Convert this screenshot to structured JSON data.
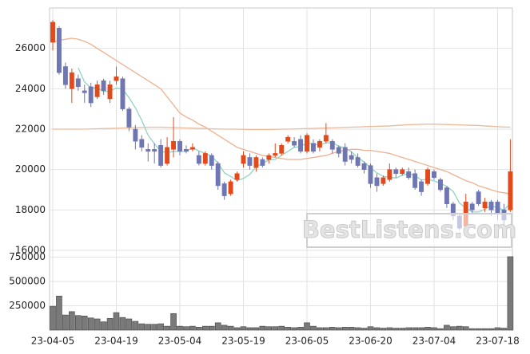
{
  "chart_data": {
    "type": "candlestick",
    "categories": [
      "23-04-05",
      null,
      null,
      null,
      null,
      null,
      null,
      null,
      null,
      null,
      "23-04-19",
      null,
      null,
      null,
      null,
      null,
      null,
      null,
      null,
      null,
      "23-05-04",
      null,
      null,
      null,
      null,
      null,
      null,
      null,
      null,
      null,
      "23-05-19",
      null,
      null,
      null,
      null,
      null,
      null,
      null,
      null,
      null,
      "23-06-05",
      null,
      null,
      null,
      null,
      null,
      null,
      null,
      null,
      null,
      "23-06-20",
      null,
      null,
      null,
      null,
      null,
      null,
      null,
      null,
      null,
      "23-07-04",
      null,
      null,
      null,
      null,
      null,
      null,
      null,
      null,
      null,
      "23-07-18",
      null,
      null
    ],
    "open": [
      26300,
      27000,
      25100,
      24000,
      24500,
      23900,
      24100,
      23600,
      24400,
      23500,
      24400,
      24500,
      23000,
      22000,
      21500,
      21000,
      21000,
      21200,
      20300,
      21000,
      21400,
      21000,
      21000,
      20700,
      20300,
      20700,
      20300,
      19300,
      18800,
      19500,
      20300,
      20600,
      20100,
      20500,
      20500,
      20700,
      20800,
      21400,
      21400,
      21500,
      20900,
      21300,
      21100,
      21400,
      21400,
      21100,
      21100,
      20700,
      20600,
      20300,
      20200,
      19600,
      19300,
      19500,
      20000,
      19800,
      19900,
      19800,
      19400,
      19300,
      19900,
      19500,
      19100,
      18300,
      17700,
      17200,
      18300,
      18900,
      18100,
      18400,
      18400,
      18000,
      18000
    ],
    "high": [
      27400,
      27100,
      25300,
      25000,
      24700,
      24200,
      24300,
      24400,
      24500,
      24400,
      25100,
      24600,
      23100,
      22200,
      21700,
      21300,
      21300,
      21500,
      21600,
      22600,
      21500,
      21200,
      21300,
      20900,
      20900,
      20800,
      20400,
      19400,
      19500,
      19900,
      20900,
      20800,
      20700,
      20600,
      20800,
      21300,
      21300,
      21700,
      21600,
      21700,
      21800,
      21500,
      21500,
      22300,
      21500,
      21200,
      21300,
      20900,
      20800,
      20400,
      20300,
      19800,
      19700,
      20300,
      20100,
      20100,
      20100,
      20000,
      19500,
      20100,
      20000,
      19600,
      19200,
      18400,
      17800,
      18800,
      18400,
      19000,
      18600,
      18500,
      18500,
      18300,
      21500
    ],
    "low": [
      25900,
      24700,
      24000,
      23300,
      23900,
      23300,
      23100,
      23500,
      23700,
      23300,
      24200,
      22900,
      21900,
      21000,
      20900,
      20400,
      20300,
      20100,
      20200,
      20600,
      20700,
      20800,
      20900,
      20200,
      20200,
      20000,
      19000,
      18500,
      18700,
      19400,
      20100,
      20000,
      19900,
      20100,
      20300,
      20600,
      20700,
      21300,
      21100,
      20800,
      20800,
      20800,
      20900,
      21300,
      20800,
      20600,
      20200,
      20300,
      20100,
      19800,
      19100,
      18900,
      19200,
      19400,
      19600,
      19700,
      19500,
      19000,
      18700,
      19200,
      19500,
      18900,
      18100,
      17500,
      17000,
      17100,
      17800,
      18200,
      17900,
      17700,
      17500,
      17300,
      17900
    ],
    "close": [
      27300,
      24800,
      24200,
      24800,
      24100,
      23800,
      23300,
      24200,
      23900,
      24200,
      24600,
      23000,
      22100,
      21400,
      21100,
      20900,
      20900,
      20200,
      21100,
      21400,
      20900,
      20900,
      21100,
      20300,
      20800,
      20200,
      19200,
      18700,
      19400,
      19800,
      20700,
      20200,
      20600,
      20200,
      20700,
      20800,
      21200,
      21600,
      21200,
      20900,
      21700,
      20900,
      21400,
      21700,
      21000,
      20800,
      20400,
      20500,
      20200,
      20000,
      19300,
      19200,
      19600,
      20000,
      19800,
      20000,
      19600,
      19100,
      18900,
      20000,
      19600,
      19000,
      18300,
      17700,
      17100,
      18400,
      18000,
      18300,
      18400,
      18000,
      17800,
      17500,
      19900
    ],
    "up_color": "#e24a1b",
    "down_color": "#6e76b4",
    "ylim": [
      16000,
      28000
    ],
    "yticks": [
      16000,
      18000,
      20000,
      22000,
      24000,
      26000
    ],
    "grid": true,
    "series": [
      {
        "color": "#8fd3c4",
        "values": [
          null,
          null,
          null,
          null,
          25040,
          24340,
          24040,
          24040,
          23860,
          23880,
          24040,
          23980,
          23560,
          23060,
          22440,
          21700,
          21280,
          20900,
          20840,
          20900,
          20900,
          20900,
          21080,
          20920,
          20800,
          20660,
          20320,
          19840,
          19660,
          19460,
          19560,
          19760,
          20140,
          20300,
          20480,
          20500,
          20700,
          20900,
          21100,
          21140,
          21320,
          21260,
          21220,
          21320,
          21340,
          21160,
          21060,
          20880,
          20580,
          20380,
          20080,
          19840,
          19660,
          19620,
          19580,
          19720,
          19800,
          19700,
          19480,
          19520,
          19440,
          19320,
          19160,
          18920,
          18340,
          18100,
          17900,
          17900,
          18040,
          18220,
          18100,
          18000,
          18320
        ]
      },
      {
        "color": "#eeb08f",
        "values": [
          26300,
          26400,
          26450,
          26500,
          26450,
          26350,
          26200,
          26000,
          25800,
          25600,
          25400,
          25200,
          25000,
          24800,
          24600,
          24400,
          24200,
          24000,
          23600,
          23200,
          22800,
          22600,
          22450,
          22250,
          22100,
          21900,
          21700,
          21500,
          21300,
          21100,
          21000,
          20900,
          20800,
          20700,
          20650,
          20600,
          20550,
          20500,
          20500,
          20500,
          20550,
          20600,
          20650,
          20700,
          20800,
          20900,
          20950,
          21000,
          21000,
          20950,
          20950,
          20900,
          20850,
          20800,
          20700,
          20600,
          20500,
          20400,
          20300,
          20200,
          20100,
          20000,
          19900,
          19750,
          19600,
          19450,
          19350,
          19200,
          19100,
          19000,
          18900,
          18850,
          18800
        ]
      },
      {
        "color": "#ebb99c",
        "values": [
          22000,
          22000,
          22000,
          22000,
          22000,
          22000,
          22010,
          22020,
          22030,
          22040,
          22050,
          22060,
          22070,
          22080,
          22090,
          22100,
          22100,
          22100,
          22090,
          22080,
          22070,
          22060,
          22050,
          22040,
          22030,
          22020,
          22010,
          22000,
          22000,
          22000,
          21990,
          21980,
          21980,
          21980,
          21980,
          21990,
          22000,
          22000,
          22010,
          22020,
          22030,
          22040,
          22050,
          22060,
          22070,
          22080,
          22090,
          22100,
          22110,
          22120,
          22130,
          22140,
          22150,
          22160,
          22180,
          22200,
          22220,
          22230,
          22240,
          22250,
          22250,
          22240,
          22230,
          22220,
          22210,
          22200,
          22190,
          22180,
          22160,
          22140,
          22120,
          22110,
          22100
        ]
      }
    ],
    "volume": {
      "color": "#7a7a7a",
      "ylim": [
        0,
        820000
      ],
      "yticks": [
        250000,
        500000,
        750000
      ],
      "values": [
        245000,
        350000,
        155000,
        190000,
        150000,
        145000,
        125000,
        115000,
        85000,
        120000,
        180000,
        130000,
        115000,
        90000,
        65000,
        60000,
        60000,
        65000,
        40000,
        170000,
        40000,
        35000,
        40000,
        30000,
        40000,
        40000,
        75000,
        50000,
        40000,
        25000,
        35000,
        25000,
        25000,
        40000,
        35000,
        35000,
        40000,
        30000,
        25000,
        30000,
        75000,
        40000,
        25000,
        25000,
        30000,
        25000,
        30000,
        30000,
        25000,
        20000,
        35000,
        25000,
        20000,
        25000,
        20000,
        20000,
        25000,
        25000,
        25000,
        30000,
        25000,
        15000,
        50000,
        35000,
        40000,
        35000,
        15000,
        15000,
        15000,
        15000,
        25000,
        20000,
        755000
      ]
    },
    "watermark": "BestListens.com"
  }
}
